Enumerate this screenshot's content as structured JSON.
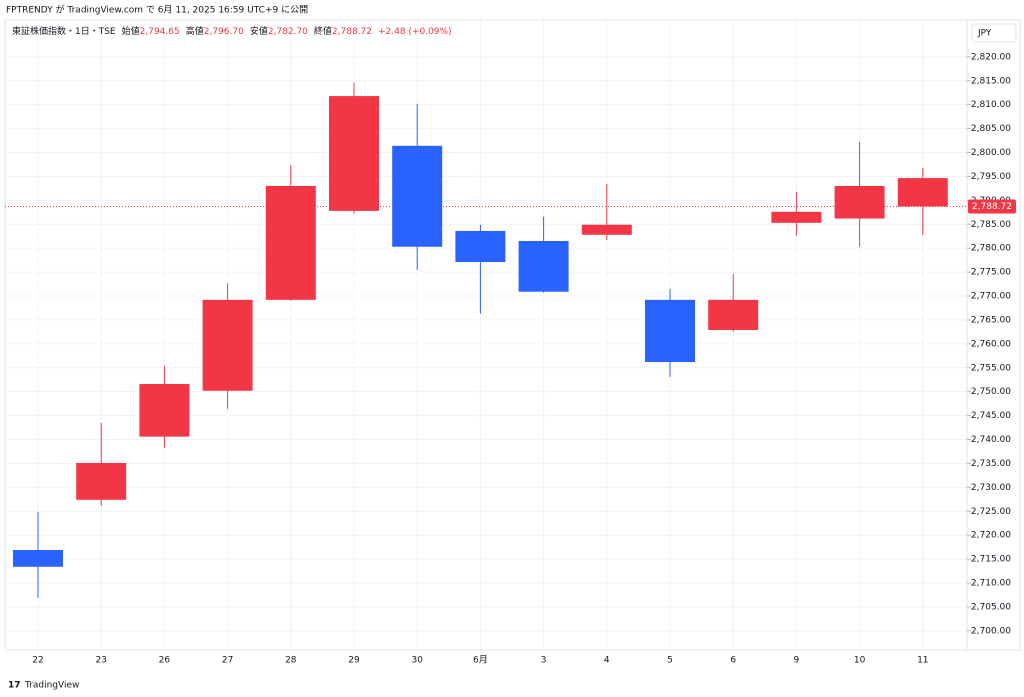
{
  "header": {
    "published": "FPTRENDY が TradingView.com で 6月 11, 2025 16:59 UTC+9 に公開"
  },
  "legend": {
    "symbol": "東証株価指数・1日・TSE",
    "items": [
      {
        "label": "始値",
        "value": "2,794.65"
      },
      {
        "label": "高値",
        "value": "2,796.70"
      },
      {
        "label": "安値",
        "value": "2,782.70"
      },
      {
        "label": "終値",
        "value": "2,788.72"
      }
    ],
    "change": "+2.48 (+0.09%)"
  },
  "currency": "JPY",
  "footer": {
    "brand": "TradingView"
  },
  "chart_data": {
    "type": "candlestick",
    "categories": [
      "22",
      "23",
      "26",
      "27",
      "28",
      "29",
      "30",
      "6月",
      "3",
      "4",
      "5",
      "6",
      "9",
      "10",
      "11"
    ],
    "open": [
      2713.4,
      2727.4,
      2740.6,
      2750.2,
      2769.2,
      2787.8,
      2801.4,
      2783.6,
      2781.5,
      2782.8,
      2769.2,
      2762.9,
      2785.3,
      2793.0,
      2794.65
    ],
    "high": [
      2724.9,
      2743.5,
      2755.4,
      2772.7,
      2797.4,
      2814.6,
      2810.2,
      2784.9,
      2786.6,
      2793.4,
      2771.5,
      2774.6,
      2791.8,
      2802.2,
      2796.7
    ],
    "low": [
      2706.9,
      2726.1,
      2738.2,
      2746.4,
      2769.0,
      2787.2,
      2775.5,
      2766.3,
      2770.7,
      2781.7,
      2753.1,
      2762.5,
      2782.6,
      2780.3,
      2782.7
    ],
    "close": [
      2716.9,
      2735.1,
      2751.6,
      2769.2,
      2793.0,
      2811.8,
      2780.3,
      2777.1,
      2770.9,
      2784.9,
      2756.2,
      2769.2,
      2787.6,
      2786.2,
      2788.72
    ],
    "colors": [
      "#2962ff",
      "#f23645",
      "#f23645",
      "#f23645",
      "#f23645",
      "#f23645",
      "#2962ff",
      "#2962ff",
      "#2962ff",
      "#f23645",
      "#2962ff",
      "#f23645",
      "#f23645",
      "#f23645",
      "#f23645"
    ],
    "last_price": {
      "value": 2788.72,
      "label": "2,788.72"
    },
    "last_color": "#f23645",
    "ylim": [
      2696.0,
      2827.7
    ],
    "yticks": [
      {
        "value": 2700,
        "label": "2,700.00"
      },
      {
        "value": 2705,
        "label": "2,705.00"
      },
      {
        "value": 2710,
        "label": "2,710.00"
      },
      {
        "value": 2715,
        "label": "2,715.00"
      },
      {
        "value": 2720,
        "label": "2,720.00"
      },
      {
        "value": 2725,
        "label": "2,725.00"
      },
      {
        "value": 2730,
        "label": "2,730.00"
      },
      {
        "value": 2735,
        "label": "2,735.00"
      },
      {
        "value": 2740,
        "label": "2,740.00"
      },
      {
        "value": 2745,
        "label": "2,745.00"
      },
      {
        "value": 2750,
        "label": "2,750.00"
      },
      {
        "value": 2755,
        "label": "2,755.00"
      },
      {
        "value": 2760,
        "label": "2,760.00"
      },
      {
        "value": 2765,
        "label": "2,765.00"
      },
      {
        "value": 2770,
        "label": "2,770.00"
      },
      {
        "value": 2775,
        "label": "2,775.00"
      },
      {
        "value": 2780,
        "label": "2,780.00"
      },
      {
        "value": 2785,
        "label": "2,785.00"
      },
      {
        "value": 2790,
        "label": "2,790.00"
      },
      {
        "value": 2795,
        "label": "2,795.00"
      },
      {
        "value": 2800,
        "label": "2,800.00"
      },
      {
        "value": 2805,
        "label": "2,805.00"
      },
      {
        "value": 2810,
        "label": "2,810.00"
      },
      {
        "value": 2815,
        "label": "2,815.00"
      },
      {
        "value": 2820,
        "label": "2,820.00"
      }
    ],
    "grid": true
  }
}
